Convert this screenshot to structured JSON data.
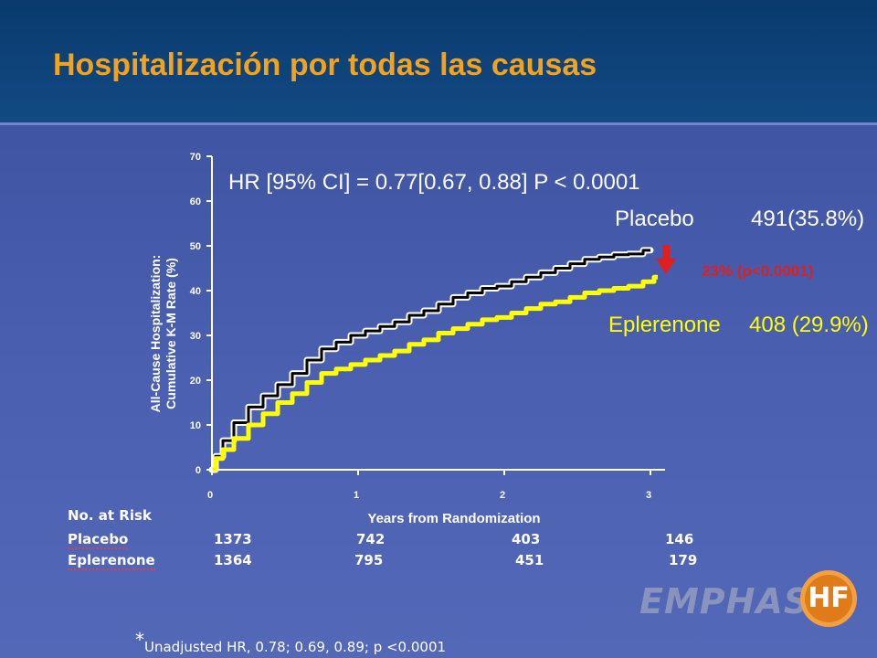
{
  "slide_title": "Hospitalización por todas las causas",
  "chart_data": {
    "type": "line",
    "ylabel_line1": "All-Cause Hospitalization:",
    "ylabel_line2": "Cumulative K-M Rate (%)",
    "xlabel": "Years  from Randomization",
    "xlim": [
      0,
      3.1
    ],
    "ylim": [
      0,
      70
    ],
    "x_ticks": [
      "0",
      "1",
      "2",
      "3"
    ],
    "y_ticks": [
      "0",
      "10",
      "20",
      "30",
      "40",
      "50",
      "60",
      "70"
    ],
    "annotation_hr": "HR [95% CI] = 0.77[0.67, 0.88] P < 0.0001",
    "annotation_reduction": "23% (p<0.0001)",
    "series": [
      {
        "name": "Placebo",
        "label_value": "491(35.8%)",
        "color": "#000000",
        "outline": "#ffffff",
        "x": [
          0,
          0.05,
          0.1,
          0.2,
          0.3,
          0.4,
          0.5,
          0.6,
          0.7,
          0.8,
          0.9,
          1.0,
          1.1,
          1.2,
          1.3,
          1.4,
          1.5,
          1.6,
          1.7,
          1.8,
          1.9,
          2.0,
          2.1,
          2.2,
          2.3,
          2.4,
          2.5,
          2.6,
          2.7,
          2.8,
          2.9,
          3.0
        ],
        "y": [
          0,
          3,
          6.5,
          10.5,
          14,
          16.5,
          19,
          21.5,
          24.5,
          27,
          28.5,
          30,
          31,
          32,
          33,
          34.5,
          35.5,
          37,
          38.5,
          39.5,
          40.5,
          41,
          42,
          43,
          44,
          45,
          46,
          47,
          47.5,
          48,
          48.2,
          49
        ]
      },
      {
        "name": "Eplerenone",
        "label_value": "408 (29.9%)",
        "color": "#ffff00",
        "outline": "#ffff00",
        "x": [
          0,
          0.05,
          0.1,
          0.2,
          0.3,
          0.4,
          0.5,
          0.6,
          0.7,
          0.8,
          0.9,
          1.0,
          1.1,
          1.2,
          1.3,
          1.4,
          1.5,
          1.6,
          1.7,
          1.8,
          1.9,
          2.0,
          2.1,
          2.2,
          2.3,
          2.4,
          2.5,
          2.6,
          2.7,
          2.8,
          2.9,
          3.0,
          3.05
        ],
        "y": [
          0,
          2.5,
          4.5,
          7,
          10,
          12.5,
          15,
          17,
          19.5,
          21.5,
          22.5,
          23.5,
          24.5,
          25.5,
          26.5,
          28,
          29,
          30.5,
          31.5,
          32.5,
          33.5,
          34,
          35,
          36,
          37,
          37.5,
          38.5,
          39.5,
          40,
          40.5,
          41,
          42,
          43
        ]
      }
    ]
  },
  "risk_table": {
    "header": "No. at Risk",
    "rows": [
      {
        "label": "Placebo",
        "values": [
          "1373",
          "742",
          "403",
          "146"
        ]
      },
      {
        "label": "Eplerenone",
        "values": [
          "1364",
          "795",
          "451",
          "179"
        ]
      }
    ]
  },
  "footnote_mark": "*",
  "footnote": "Unadjusted HR, 0.78; 0.69, 0.89; p <0.0001",
  "logo": {
    "text": "EMPHASIS",
    "badge": "HF"
  },
  "colors": {
    "title": "#f2a21c",
    "annotation_red": "#e02020",
    "eplerenone": "#ffff00"
  }
}
